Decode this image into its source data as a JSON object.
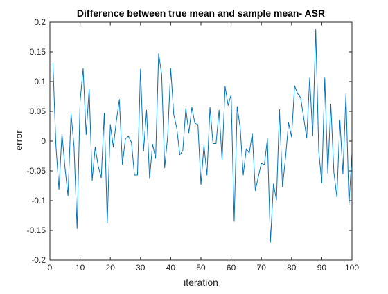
{
  "chart_data": {
    "type": "line",
    "title": "Difference between true mean and sample mean- ASR",
    "xlabel": "iteration",
    "ylabel": "error",
    "xlim": [
      0,
      100
    ],
    "ylim": [
      -0.2,
      0.2
    ],
    "xticks": [
      0,
      10,
      20,
      30,
      40,
      50,
      60,
      70,
      80,
      90,
      100
    ],
    "xtick_labels": [
      "0",
      "10",
      "20",
      "30",
      "40",
      "50",
      "60",
      "70",
      "80",
      "90",
      "100"
    ],
    "yticks": [
      -0.2,
      -0.15,
      -0.1,
      -0.05,
      0,
      0.05,
      0.1,
      0.15,
      0.2
    ],
    "ytick_labels": [
      "-0.2",
      "-0.15",
      "-0.1",
      "-0.05",
      "0",
      "0.05",
      "0.1",
      "0.15",
      "0.2"
    ],
    "grid": false,
    "line_color": "#0072BD",
    "axis_color": "#262626",
    "series": [
      {
        "x": [
          1,
          2,
          3,
          4,
          5,
          6,
          7,
          8,
          9,
          10,
          11,
          12,
          13,
          14,
          15,
          16,
          17,
          18,
          19,
          20,
          21,
          22,
          23,
          24,
          25,
          26,
          27,
          28,
          29,
          30,
          31,
          32,
          33,
          34,
          35,
          36,
          37,
          38,
          39,
          40,
          41,
          42,
          43,
          44,
          45,
          46,
          47,
          48,
          49,
          50,
          51,
          52,
          53,
          54,
          55,
          56,
          57,
          58,
          59,
          60,
          61,
          62,
          63,
          64,
          65,
          66,
          67,
          68,
          69,
          70,
          71,
          72,
          73,
          74,
          75,
          76,
          77,
          78,
          79,
          80,
          81,
          82,
          83,
          84,
          85,
          86,
          87,
          88,
          89,
          90,
          91,
          92,
          93,
          94,
          95,
          96,
          97,
          98,
          99,
          100
        ],
        "values": [
          0.131,
          -0.008,
          -0.081,
          0.013,
          -0.045,
          -0.092,
          0.047,
          -0.01,
          -0.147,
          0.067,
          0.122,
          0.011,
          0.088,
          -0.066,
          -0.01,
          -0.042,
          -0.062,
          0.047,
          -0.138,
          0.028,
          -0.01,
          0.034,
          0.07,
          -0.039,
          0.004,
          0.008,
          -0.002,
          -0.057,
          -0.057,
          0.121,
          -0.017,
          0.052,
          -0.063,
          -0.005,
          -0.029,
          0.147,
          0.112,
          -0.045,
          0.009,
          0.122,
          0.045,
          0.022,
          -0.023,
          -0.016,
          0.055,
          0.014,
          0.057,
          0.03,
          0.028,
          -0.073,
          -0.007,
          -0.057,
          0.057,
          -0.004,
          -0.004,
          0.052,
          -0.032,
          0.092,
          0.06,
          0.078,
          -0.135,
          0.058,
          0.022,
          -0.057,
          -0.013,
          -0.02,
          0.013,
          -0.083,
          -0.06,
          -0.037,
          -0.04,
          0.004,
          -0.17,
          -0.072,
          -0.099,
          0.053,
          -0.077,
          -0.028,
          0.031,
          0.007,
          0.093,
          0.08,
          0.073,
          0.04,
          0.005,
          0.106,
          0.009,
          0.188,
          -0.017,
          -0.07,
          0.106,
          -0.054,
          0.062,
          -0.052,
          -0.094,
          0.035,
          -0.055,
          0.079,
          -0.107,
          -0.02
        ]
      }
    ]
  }
}
